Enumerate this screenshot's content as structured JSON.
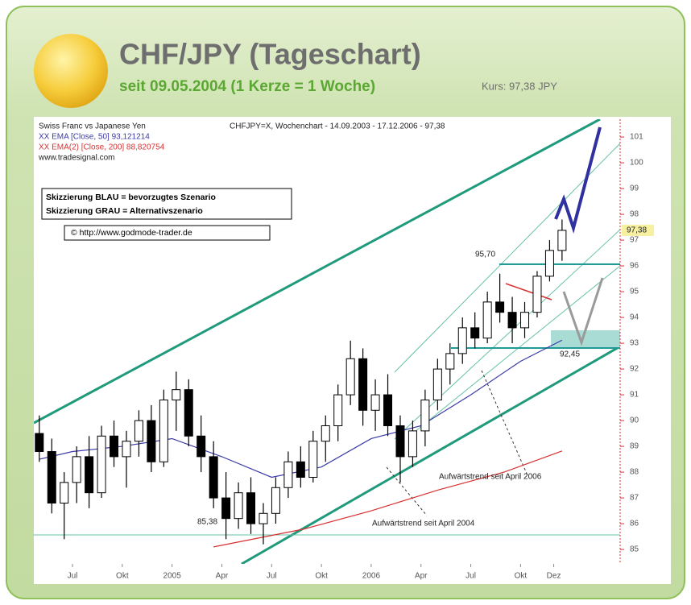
{
  "header": {
    "title": "CHF/JPY (Tageschart)",
    "subtitle": "seit 09.05.2004 (1 Kerze = 1 Woche)",
    "price": "Kurs: 97,38 JPY"
  },
  "chart_data": {
    "type": "candlestick",
    "title": "CHFJPY=X, Wochenchart - 14.09.2003 - 17.12.2006 - 97,38",
    "source_lines": [
      "Swiss Franc vs Japanese Yen",
      "www.tradesignal.com"
    ],
    "notes": [
      "Skizzierung BLAU = bevorzugtes Szenario",
      "Skizzierung GRAU = Alternativszenario"
    ],
    "copyright": "© http://www.godmode-trader.de",
    "annotations": [
      "95,70",
      "92,45",
      "85,38",
      "Aufwärtstrend seit April 2006",
      "Aufwärtstrend seit April 2004"
    ],
    "x": [
      4.0,
      4.75,
      5.5,
      6.25,
      7.0,
      7.75,
      8.5,
      9.25,
      10.0,
      10.75,
      11.5,
      12.25,
      13.0,
      13.75,
      14.5,
      15.25,
      16.0,
      16.75,
      17.5,
      18.25,
      19.0,
      19.75,
      20.5,
      21.25,
      22.0,
      22.75,
      23.5,
      24.25,
      25.0,
      25.75,
      26.5,
      27.25,
      28.0,
      28.75,
      29.5,
      30.25,
      31.0,
      31.75,
      32.5,
      33.25,
      34.0,
      34.75,
      35.5
    ],
    "open": [
      89.5,
      88.8,
      86.8,
      87.6,
      88.6,
      87.2,
      89.4,
      88.6,
      89.2,
      90.0,
      88.4,
      90.8,
      91.2,
      89.4,
      88.6,
      87.0,
      86.2,
      87.2,
      86.0,
      86.4,
      87.4,
      88.4,
      87.8,
      89.2,
      89.8,
      91.0,
      92.4,
      90.4,
      91.0,
      89.8,
      88.6,
      89.6,
      90.8,
      92.0,
      92.6,
      93.6,
      93.2,
      94.6,
      94.2,
      93.6,
      94.2,
      95.6,
      96.6
    ],
    "high": [
      90.2,
      89.3,
      88.0,
      89.0,
      89.4,
      89.8,
      90.0,
      89.6,
      90.4,
      90.6,
      91.2,
      91.9,
      91.6,
      90.2,
      89.2,
      88.0,
      87.6,
      87.8,
      86.8,
      87.8,
      88.8,
      89.0,
      89.6,
      90.2,
      91.4,
      93.1,
      92.8,
      91.6,
      91.8,
      90.2,
      90.0,
      91.2,
      92.4,
      93.0,
      94.0,
      94.2,
      95.0,
      95.7,
      94.8,
      94.6,
      95.8,
      97.0,
      97.8
    ],
    "low": [
      88.4,
      86.4,
      85.4,
      86.8,
      86.6,
      87.0,
      88.2,
      87.4,
      88.6,
      88.0,
      88.2,
      89.6,
      89.0,
      88.0,
      86.6,
      85.4,
      85.8,
      85.6,
      85.2,
      86.0,
      87.0,
      87.4,
      87.6,
      88.4,
      89.2,
      90.6,
      89.8,
      89.6,
      89.4,
      87.6,
      88.2,
      89.0,
      90.4,
      91.4,
      92.2,
      92.8,
      93.0,
      93.8,
      93.0,
      93.2,
      94.0,
      95.4,
      96.2
    ],
    "close": [
      88.8,
      86.8,
      87.6,
      88.6,
      87.2,
      89.4,
      88.6,
      89.2,
      90.0,
      88.4,
      90.8,
      91.2,
      89.4,
      88.6,
      87.0,
      86.2,
      87.2,
      86.0,
      86.4,
      87.4,
      88.4,
      87.8,
      89.2,
      89.8,
      91.0,
      92.4,
      90.4,
      91.0,
      89.8,
      88.6,
      89.6,
      90.8,
      92.0,
      92.6,
      93.6,
      93.2,
      94.6,
      94.2,
      93.6,
      94.2,
      95.6,
      96.6,
      97.38
    ],
    "series": [
      {
        "name": "XX EMA [Close, 50] 93,121214",
        "color": "#3a3aa8",
        "x": [
          4,
          6,
          9,
          12,
          15,
          18,
          21,
          24,
          27,
          30,
          33,
          35.5
        ],
        "values": [
          88.5,
          88.8,
          89.0,
          89.3,
          88.6,
          87.8,
          88.2,
          89.3,
          89.8,
          91.0,
          92.3,
          93.12
        ]
      },
      {
        "name": "XX EMA(2) [Close, 200] 88,820754",
        "color": "#d83030",
        "x": [
          14.5,
          20,
          24,
          28,
          32,
          35.5
        ],
        "values": [
          85.1,
          85.8,
          86.5,
          87.3,
          88.0,
          88.82
        ]
      }
    ],
    "price_label": {
      "value": 97.38,
      "label": "97,38"
    },
    "xlim": [
      3.67,
      39.0
    ],
    "xticks": [
      {
        "value": 6,
        "label": "Jul"
      },
      {
        "value": 9,
        "label": "Okt"
      },
      {
        "value": 12,
        "label": "2005"
      },
      {
        "value": 15,
        "label": "Apr"
      },
      {
        "value": 18,
        "label": "Jul"
      },
      {
        "value": 21,
        "label": "Okt"
      },
      {
        "value": 24,
        "label": "2006"
      },
      {
        "value": 27,
        "label": "Apr"
      },
      {
        "value": 30,
        "label": "Jul"
      },
      {
        "value": 33,
        "label": "Okt"
      },
      {
        "value": 35,
        "label": "Dez"
      }
    ],
    "ylim": [
      84.44,
      101.69
    ],
    "yticks": [
      85,
      86,
      87,
      88,
      89,
      90,
      91,
      92,
      93,
      94,
      95,
      96,
      97,
      98,
      99,
      100,
      101
    ],
    "grid": false
  }
}
